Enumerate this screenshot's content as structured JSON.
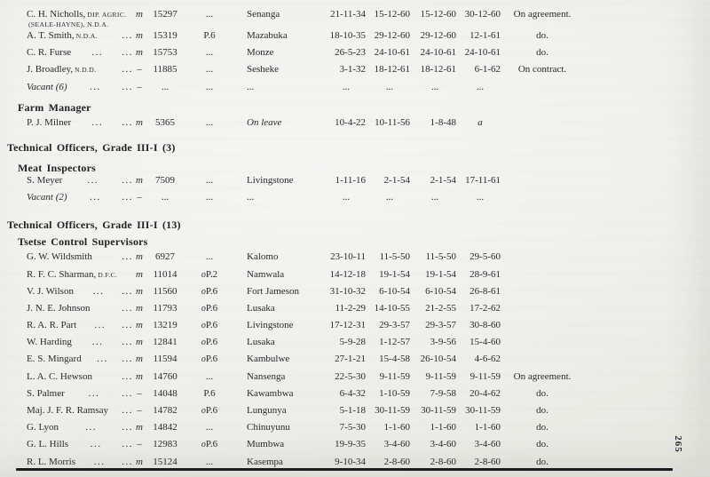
{
  "page": {
    "number": "265"
  },
  "colors": {
    "paper": "#edeee8",
    "ink": "#2a2a2e",
    "rule": "#1c1c1f"
  },
  "sections": [
    {
      "rows": [
        {
          "name": "C. H. Nicholls,",
          "name_small": "DIP. AGRIC.",
          "name_line2": "(SEALE-HAYNE), N.D.A.",
          "m": "m",
          "no": "15297",
          "grade": "...",
          "station": "Senanga",
          "d1": "21-11-34",
          "d2": "15-12-60",
          "d3": "15-12-60",
          "d4": "30-12-60",
          "remarks": "On agreement."
        },
        {
          "name": "A. T. Smith,",
          "name_small": "N.D.A.",
          "dots1": "...",
          "m": "m",
          "no": "15319",
          "grade": "P.6",
          "station": "Mazabuka",
          "d1": "18-10-35",
          "d2": "29-12-60",
          "d3": "29-12-60",
          "d4": "12-1-61",
          "remarks": "do."
        },
        {
          "name": "C. R. Furse",
          "dots1": "...",
          "dots2": "...",
          "m": "m",
          "no": "15753",
          "grade": "...",
          "station": "Monze",
          "d1": "26-5-23",
          "d2": "24-10-61",
          "d3": "24-10-61",
          "d4": "24-10-61",
          "remarks": "do."
        },
        {
          "name": "J. Broadley,",
          "name_small": "N.D.D.",
          "dots1": "...",
          "m": "–",
          "no": "11885",
          "grade": "...",
          "station": "Sesheke",
          "d1": "3-1-32",
          "d2": "18-12-61",
          "d3": "18-12-61",
          "d4": "6-1-62",
          "remarks": "On contract."
        },
        {
          "name": "Vacant (6)",
          "italic_name": true,
          "dots1": "...",
          "dots2": "...",
          "m": "–",
          "no": "...",
          "grade": "...",
          "station": "...",
          "d1": "...",
          "d2": "...",
          "d3": "...",
          "d4": "..."
        }
      ]
    },
    {
      "subheading": "Farm Manager",
      "rows": [
        {
          "name": "P. J. Milner",
          "dots1": "...",
          "dots2": "...",
          "m": "m",
          "no": "5365",
          "grade": "...",
          "station": "On leave",
          "italic_station": true,
          "d1": "10-4-22",
          "d2": "10-11-56",
          "d3": "1-8-48",
          "d4": "a",
          "italic_d4": true
        }
      ]
    },
    {
      "heading": "Technical Officers, Grade III-I (3)",
      "subheading": "Meat Inspectors",
      "rows": [
        {
          "name": "S. Meyer",
          "dots1": "...",
          "dots2": "...",
          "m": "m",
          "no": "7509",
          "grade": "...",
          "station": "Livingstone",
          "d1": "1-11-16",
          "d2": "2-1-54",
          "d3": "2-1-54",
          "d4": "17-11-61"
        },
        {
          "name": "Vacant (2)",
          "italic_name": true,
          "dots1": "...",
          "dots2": "...",
          "m": "–",
          "no": "...",
          "grade": "...",
          "station": "...",
          "d1": "...",
          "d2": "...",
          "d3": "...",
          "d4": "..."
        }
      ]
    },
    {
      "heading": "Technical Officers, Grade III-I (13)",
      "subheading": "Tsetse Control Supervisors",
      "rows": [
        {
          "name": "G. W. Wildsmith",
          "dots1": "...",
          "m": "m",
          "no": "6927",
          "grade": "...",
          "station": "Kalomo",
          "d1": "23-10-11",
          "d2": "11-5-50",
          "d3": "11-5-50",
          "d4": "29-5-60"
        },
        {
          "name": "R. F. C. Sharman,",
          "name_small": "D.F.C.",
          "m": "m",
          "no": "11014",
          "grade_prefix": "o",
          "grade": "P.2",
          "station": "Namwala",
          "d1": "14-12-18",
          "d2": "19-1-54",
          "d3": "19-1-54",
          "d4": "28-9-61"
        },
        {
          "name": "V. J. Wilson",
          "dots1": "...",
          "dots2": "...",
          "m": "m",
          "no": "11560",
          "grade_prefix": "o",
          "grade": "P.6",
          "station": "Fort Jameson",
          "d1": "31-10-32",
          "d2": "6-10-54",
          "d3": "6-10-54",
          "d4": "26-8-61"
        },
        {
          "name": "J. N. E. Johnson",
          "dots1": "...",
          "m": "m",
          "no": "11793",
          "grade_prefix": "o",
          "grade": "P.6",
          "station": "Lusaka",
          "d1": "11-2-29",
          "d2": "14-10-55",
          "d3": "21-2-55",
          "d4": "17-2-62"
        },
        {
          "name": "R. A. R. Part",
          "dots1": "...",
          "dots2": "...",
          "m": "m",
          "no": "13219",
          "grade_prefix": "o",
          "grade": "P.6",
          "station": "Livingstone",
          "d1": "17-12-31",
          "d2": "29-3-57",
          "d3": "29-3-57",
          "d4": "30-8-60"
        },
        {
          "name": "W. Harding",
          "dots1": "...",
          "dots2": "...",
          "m": "m",
          "no": "12841",
          "grade_prefix": "o",
          "grade": "P.6",
          "station": "Lusaka",
          "d1": "5-9-28",
          "d2": "1-12-57",
          "d3": "3-9-56",
          "d4": "15-4-60"
        },
        {
          "name": "E. S. Mingard",
          "dots1": "...",
          "dots2": "...",
          "m": "m",
          "no": "11594",
          "grade_prefix": "o",
          "grade": "P.6",
          "station": "Kambulwe",
          "d1": "27-1-21",
          "d2": "15-4-58",
          "d3": "26-10-54",
          "d4": "4-6-62"
        },
        {
          "name": "L. A. C. Hewson",
          "dots1": "...",
          "m": "m",
          "no": "14760",
          "grade": "...",
          "station": "Nansenga",
          "d1": "22-5-30",
          "d2": "9-11-59",
          "d3": "9-11-59",
          "d4": "9-11-59",
          "remarks": "On agreement."
        },
        {
          "name": "S. Palmer",
          "dots1": "...",
          "dots2": "...",
          "m": "–",
          "no": "14048",
          "grade": "P.6",
          "station": "Kawambwa",
          "d1": "6-4-32",
          "d2": "1-10-59",
          "d3": "7-9-58",
          "d4": "20-4-62",
          "remarks": "do."
        },
        {
          "name": "Maj. J. F. R. Ramsay",
          "dots1": "...",
          "m": "–",
          "no": "14782",
          "grade_prefix": "o",
          "grade": "P.6",
          "station": "Lungunya",
          "d1": "5-1-18",
          "d2": "30-11-59",
          "d3": "30-11-59",
          "d4": "30-11-59",
          "remarks": "do."
        },
        {
          "name": "G. Lyon",
          "dots1": "...",
          "dots2": "...",
          "m": "m",
          "no": "14842",
          "grade": "...",
          "station": "Chinuyunu",
          "d1": "7-5-30",
          "d2": "1-1-60",
          "d3": "1-1-60",
          "d4": "1-1-60",
          "remarks": "do."
        },
        {
          "name": "G. L. Hills",
          "dots1": "...",
          "dots2": "...",
          "m": "–",
          "no": "12983",
          "grade_prefix": "o",
          "grade": "P.6",
          "station": "Mumbwa",
          "d1": "19-9-35",
          "d2": "3-4-60",
          "d3": "3-4-60",
          "d4": "3-4-60",
          "remarks": "do."
        },
        {
          "name": "R. L. Morris",
          "dots1": "...",
          "dots2": "...",
          "m": "m",
          "no": "15124",
          "grade": "...",
          "station": "Kasempa",
          "d1": "9-10-34",
          "d2": "2-8-60",
          "d3": "2-8-60",
          "d4": "2-8-60",
          "remarks": "do."
        }
      ]
    }
  ]
}
